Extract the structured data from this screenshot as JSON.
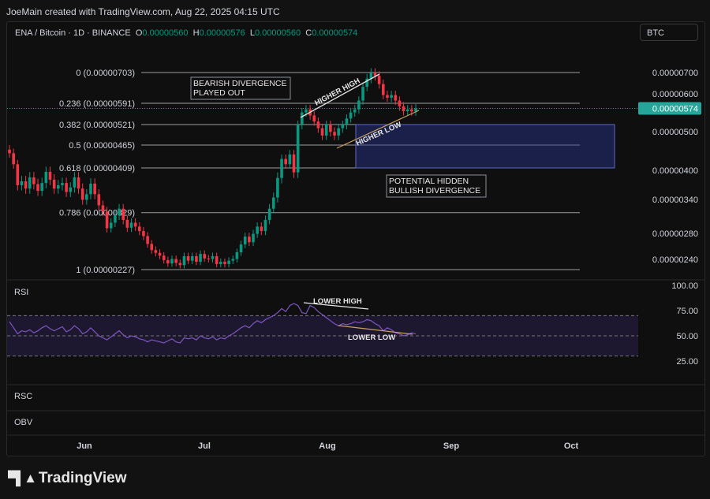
{
  "credit": "JoeMain created with TradingView.com, Aug 22, 2025 04:15 UTC",
  "header": {
    "symbol": "ENA / Bitcoin · 1D · BINANCE",
    "o_label": "O",
    "o_value": "0.00000560",
    "h_label": "H",
    "h_value": "0.00000576",
    "l_label": "L",
    "l_value": "0.00000560",
    "c_label": "C",
    "c_value": "0.00000574"
  },
  "currency_button": "BTC",
  "brand": "TradingView",
  "colors": {
    "up": "#089981",
    "down": "#f23645",
    "rsi": "#7e57c2",
    "zone": "#283593",
    "accent": "#26a69a"
  },
  "chart_data": [
    {
      "type": "candlestick",
      "x_ticks": [
        "Jun",
        "Jul",
        "Aug",
        "Sep",
        "Oct"
      ],
      "y_ticks": [
        "0.00000700",
        "0.00000600",
        "0.00000500",
        "0.00000400",
        "0.00000340",
        "0.00000280",
        "0.00000240"
      ],
      "last_price": "0.00000574",
      "fib_levels": [
        {
          "label": "0 (0.00000703)",
          "value": 7.03e-06
        },
        {
          "label": "0.236 (0.00000591)",
          "value": 5.91e-06
        },
        {
          "label": "0.382 (0.00000521)",
          "value": 5.21e-06
        },
        {
          "label": "0.5 (0.00000465)",
          "value": 4.65e-06
        },
        {
          "label": "0.618 (0.00000409)",
          "value": 4.09e-06
        },
        {
          "label": "0.786 (0.00000329)",
          "value": 3.29e-06
        },
        {
          "label": "1 (0.00000227)",
          "value": 2.27e-06
        }
      ],
      "annotations": [
        "BEARISH DIVERGENCE\nPLAYED OUT",
        "HIGHER HIGH",
        "HIGHER LOW",
        "POTENTIAL HIDDEN\nBULLISH DIVERGENCE"
      ],
      "closes": [
        4.45e-06,
        4.18e-06,
        3.78e-06,
        3.85e-06,
        3.72e-06,
        3.92e-06,
        3.8e-06,
        3.68e-06,
        3.82e-06,
        4.02e-06,
        3.88e-06,
        3.72e-06,
        3.78e-06,
        3.82e-06,
        3.66e-06,
        3.74e-06,
        3.92e-06,
        3.72e-06,
        3.52e-06,
        3.62e-06,
        3.81e-06,
        3.62e-06,
        3.42e-06,
        3.31e-06,
        3.01e-06,
        3.11e-06,
        3.24e-06,
        3.36e-06,
        3.16e-06,
        3.02e-06,
        3.11e-06,
        3.04e-06,
        2.96e-06,
        2.87e-06,
        2.73e-06,
        2.62e-06,
        2.57e-06,
        2.52e-06,
        2.44e-06,
        2.38e-06,
        2.46e-06,
        2.39e-06,
        2.35e-06,
        2.51e-06,
        2.43e-06,
        2.51e-06,
        2.41e-06,
        2.55e-06,
        2.47e-06,
        2.46e-06,
        2.51e-06,
        2.37e-06,
        2.41e-06,
        2.37e-06,
        2.43e-06,
        2.46e-06,
        2.58e-06,
        2.72e-06,
        2.86e-06,
        2.76e-06,
        2.91e-06,
        3.04e-06,
        2.96e-06,
        3.16e-06,
        3.36e-06,
        3.56e-06,
        3.91e-06,
        4.31e-06,
        4.18e-06,
        4.42e-06,
        4.01e-06,
        5.21e-06,
        5.61e-06,
        5.71e-06,
        5.51e-06,
        5.31e-06,
        5.11e-06,
        4.91e-06,
        5.21e-06,
        5.01e-06,
        4.91e-06,
        5.11e-06,
        5.21e-06,
        5.41e-06,
        5.61e-06,
        5.71e-06,
        6.01e-06,
        6.51e-06,
        6.81e-06,
        7.01e-06,
        6.91e-06,
        6.61e-06,
        6.21e-06,
        6.11e-06,
        6.21e-06,
        6.01e-06,
        5.81e-06,
        5.65e-06,
        5.71e-06,
        5.64e-06,
        5.74e-06
      ]
    },
    {
      "type": "line",
      "name": "RSI",
      "y_ticks": [
        "100.00",
        "75.00",
        "50.00",
        "25.00"
      ],
      "bands": [
        70,
        50,
        30
      ],
      "annotations": [
        "LOWER HIGH",
        "LOWER LOW"
      ],
      "values": [
        64,
        58,
        52,
        55,
        54,
        56,
        53,
        55,
        58,
        60,
        57,
        55,
        57,
        59,
        54,
        56,
        60,
        57,
        52,
        54,
        58,
        54,
        50,
        48,
        46,
        49,
        52,
        55,
        51,
        48,
        50,
        49,
        47,
        46,
        44,
        46,
        45,
        44,
        43,
        45,
        47,
        44,
        43,
        48,
        47,
        48,
        46,
        50,
        48,
        47,
        49,
        46,
        48,
        47,
        50,
        52,
        55,
        58,
        60,
        58,
        62,
        65,
        63,
        66,
        68,
        70,
        73,
        77,
        74,
        80,
        82,
        80,
        73,
        72,
        80,
        78,
        74,
        71,
        68,
        65,
        62,
        60,
        62,
        61,
        62,
        64,
        63,
        64,
        66,
        65,
        62,
        60,
        55,
        58,
        56,
        53,
        52,
        50,
        51,
        53,
        52
      ]
    }
  ],
  "panes": {
    "rsi": "RSI",
    "rsc": "RSC",
    "obv": "OBV"
  }
}
